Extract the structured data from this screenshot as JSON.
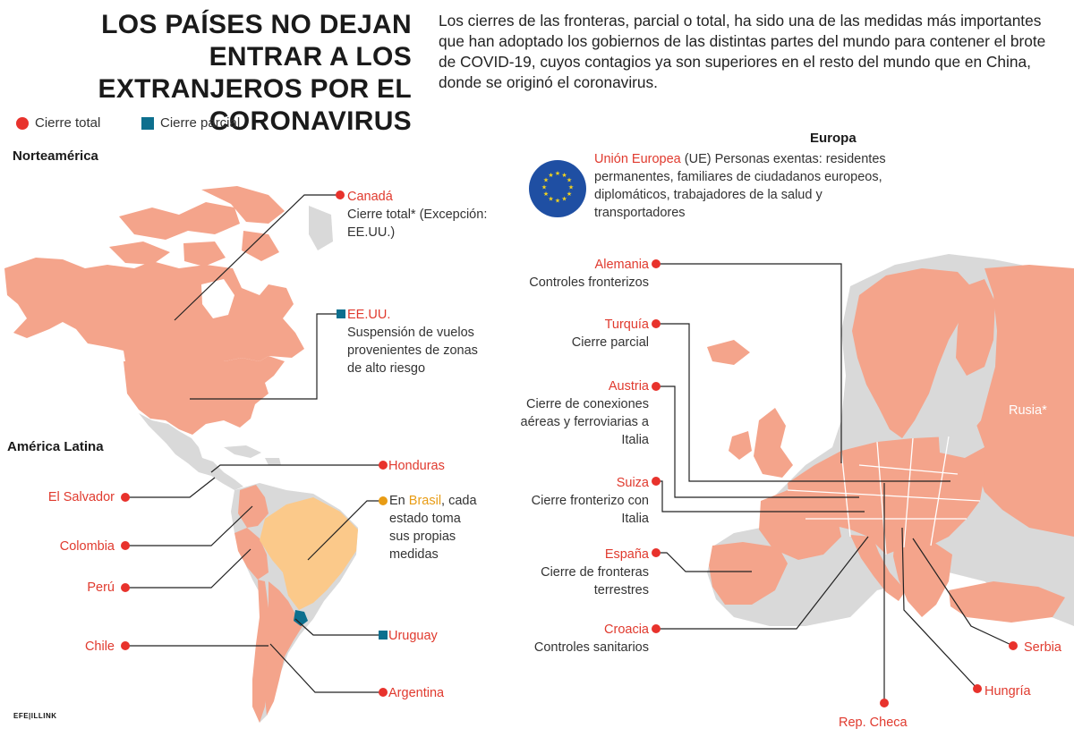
{
  "title": "LOS PAÍSES NO DEJAN ENTRAR A LOS EXTRANJEROS POR EL CORONAVIRUS",
  "intro": "Los cierres de las fronteras, parcial o total, ha sido una de las medidas más importantes que han adoptado los gobiernos de las distintas partes del mundo para contener el brote de COVID-19, cuyos contagios ya son superiores en el resto del mundo que en China, donde se originó el coronavirus.",
  "legend": {
    "total": "Cierre total",
    "partial": "Cierre parcial"
  },
  "colors": {
    "total_closure": "#e8322c",
    "partial_closure": "#0d6f8e",
    "country_fill": "#f4a48b",
    "other_land": "#d9d9d9",
    "brazil": "#fbc98a",
    "eu_flag": "#1f4fa3",
    "eu_stars": "#f5d41c"
  },
  "regions": {
    "north_america": "Norteamérica",
    "latin_america": "América Latina",
    "europe": "Europa"
  },
  "eu": {
    "name": "Unión Europea",
    "abbr": "(UE)",
    "note": "Personas exentas: residentes permanentes, familiares de ciudadanos europeos, diplomáticos, trabajadores de la salud y transportadores"
  },
  "north_america": [
    {
      "country": "Canadá",
      "status": "total",
      "note": "Cierre total* (Excepción: EE.UU.)"
    },
    {
      "country": "EE.UU.",
      "status": "partial",
      "note": "Suspensión de vuelos provenientes de zonas de alto riesgo"
    }
  ],
  "latin_america": {
    "honduras": "Honduras",
    "el_salvador": "El Salvador",
    "colombia": "Colombia",
    "peru": "Perú",
    "chile": "Chile",
    "argentina": "Argentina",
    "uruguay": "Uruguay",
    "brazil_pre": "En",
    "brazil": "Brasil",
    "brazil_note": ", cada estado toma sus propias medidas"
  },
  "europe": [
    {
      "country": "Alemania",
      "note": "Controles fronterizos"
    },
    {
      "country": "Turquía",
      "note": "Cierre parcial"
    },
    {
      "country": "Austria",
      "note": "Cierre de conexiones aéreas y ferroviarias a Italia"
    },
    {
      "country": "Suiza",
      "note": "Cierre fronterizo con Italia"
    },
    {
      "country": "España",
      "note": "Cierre de fronteras terrestres"
    },
    {
      "country": "Croacia",
      "note": "Controles sanitarios"
    }
  ],
  "europe_bottom": {
    "russia": "Rusia*",
    "serbia": "Serbia",
    "hungary": "Hungría",
    "czech": "Rep. Checa"
  },
  "logo": "EFE|ILLINK"
}
